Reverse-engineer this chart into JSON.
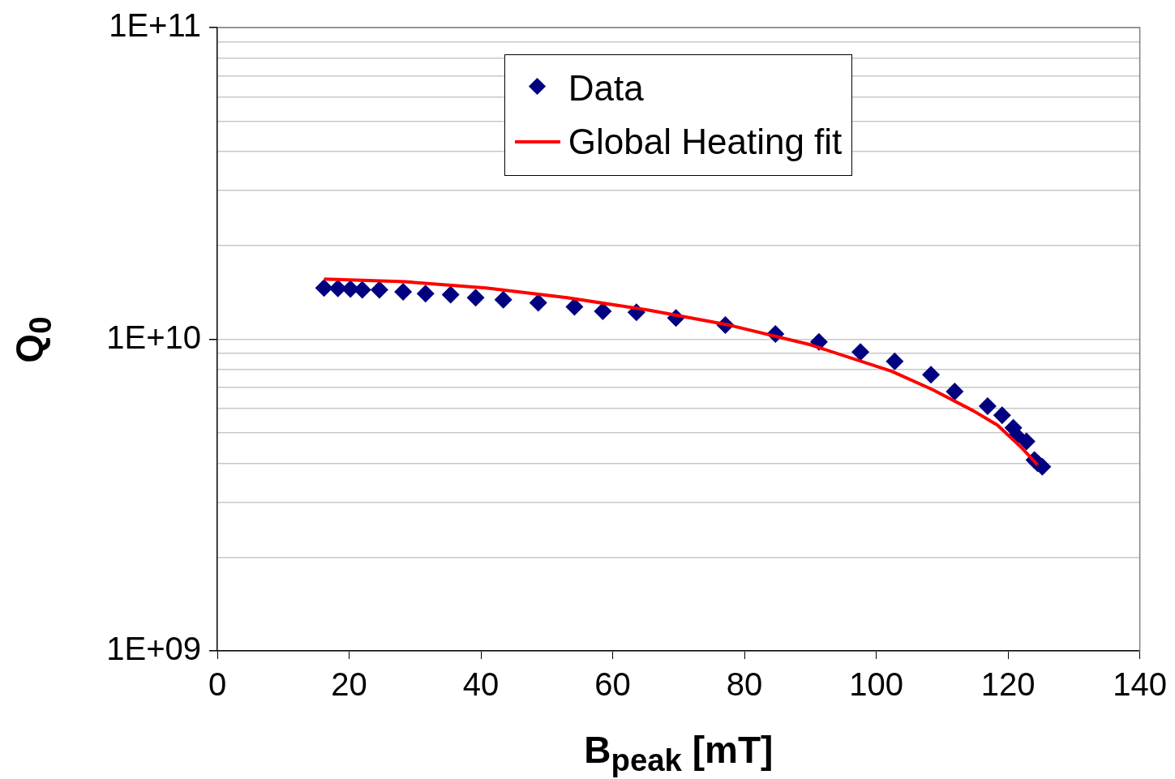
{
  "chart_data": {
    "type": "scatter",
    "xlabel": "B$_{peak}$ [mT]",
    "ylabel": "Q$_{0}$",
    "xlim": [
      0,
      140
    ],
    "xticks": [
      0,
      20,
      40,
      60,
      80,
      100,
      120,
      140
    ],
    "ylim": [
      1000000000.0,
      100000000000.0
    ],
    "log": "y",
    "yticks": [
      {
        "value": 1000000000.0,
        "label": "1E+09"
      },
      {
        "value": 2000000000.0,
        "label": null
      },
      {
        "value": 3000000000.0,
        "label": null
      },
      {
        "value": 4000000000.0,
        "label": null
      },
      {
        "value": 5000000000.0,
        "label": null
      },
      {
        "value": 6000000000.0,
        "label": null
      },
      {
        "value": 7000000000.0,
        "label": null
      },
      {
        "value": 8000000000.0,
        "label": null
      },
      {
        "value": 9000000000.0,
        "label": null
      },
      {
        "value": 10000000000.0,
        "label": "1E+10"
      },
      {
        "value": 20000000000.0,
        "label": null
      },
      {
        "value": 30000000000.0,
        "label": null
      },
      {
        "value": 40000000000.0,
        "label": null
      },
      {
        "value": 50000000000.0,
        "label": null
      },
      {
        "value": 60000000000.0,
        "label": null
      },
      {
        "value": 70000000000.0,
        "label": null
      },
      {
        "value": 80000000000.0,
        "label": null
      },
      {
        "value": 90000000000.0,
        "label": null
      },
      {
        "value": 100000000000.0,
        "label": "1E+11"
      }
    ],
    "grid": "y",
    "legend": "top",
    "series": [
      {
        "name": "Data",
        "type": "scatter",
        "marker": "diamond",
        "color": "#000080",
        "x": [
          16.2,
          18.3,
          20.2,
          22.0,
          24.6,
          28.2,
          31.6,
          35.4,
          39.2,
          43.4,
          48.7,
          54.2,
          58.5,
          63.6,
          69.6,
          77.1,
          84.7,
          91.3,
          97.6,
          102.8,
          108.3,
          111.9,
          116.9,
          119.1,
          120.8,
          121.3,
          122.8,
          124.0,
          124.5,
          125.2
        ],
        "values": [
          14600000000.0,
          14560000000.0,
          14500000000.0,
          14400000000.0,
          14400000000.0,
          14200000000.0,
          14000000000.0,
          13900000000.0,
          13600000000.0,
          13400000000.0,
          13100000000.0,
          12700000000.0,
          12300000000.0,
          12200000000.0,
          11700000000.0,
          11100000000.0,
          10400000000.0,
          9800000000.0,
          9100000000.0,
          8500000000.0,
          7700000000.0,
          6800000000.0,
          6100000000.0,
          5700000000.0,
          5200000000.0,
          4900000000.0,
          4700000000.0,
          4100000000.0,
          4000000000.0,
          3900000000.0
        ]
      },
      {
        "name": "Global Heating fit",
        "type": "line",
        "marker": "none",
        "color": "#ff0000",
        "x": [
          16.2,
          28.5,
          40.8,
          53.1,
          65.4,
          77.7,
          90.0,
          102.3,
          108.5,
          114.7,
          118.4,
          122.0,
          124.5
        ],
        "values": [
          15600000000.0,
          15300000000.0,
          14600000000.0,
          13600000000.0,
          12400000000.0,
          11100000000.0,
          9600000000.0,
          7900000000.0,
          6900000000.0,
          5900000000.0,
          5300000000.0,
          4500000000.0,
          3950000000.0
        ]
      }
    ]
  }
}
